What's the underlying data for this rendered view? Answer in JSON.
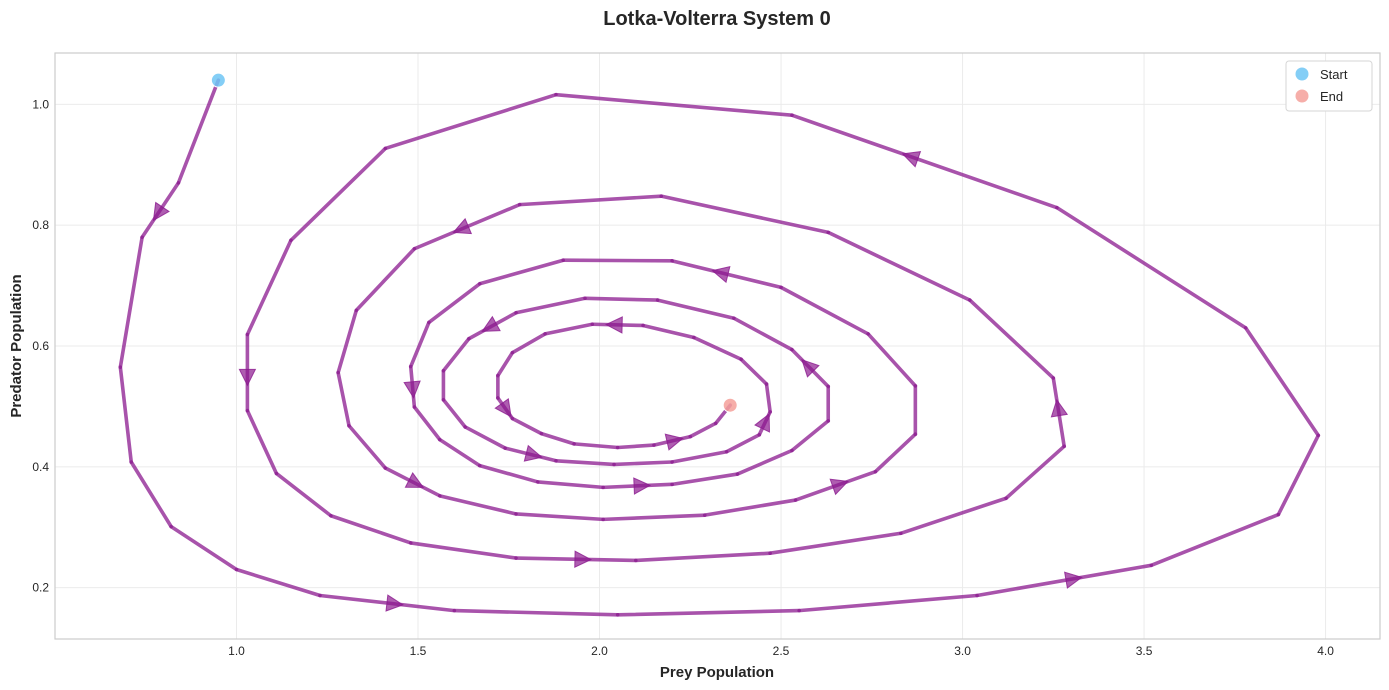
{
  "chart_data": {
    "type": "line",
    "title": "Lotka-Volterra System 0",
    "xlabel": "Prey Population",
    "ylabel": "Predator Population",
    "xlim": [
      0.5,
      4.15
    ],
    "ylim": [
      0.115,
      1.085
    ],
    "xticks": [
      "1.0",
      "1.5",
      "2.0",
      "2.5",
      "3.0",
      "3.5",
      "4.0"
    ],
    "yticks": [
      "0.2",
      "0.4",
      "0.6",
      "0.8",
      "1.0"
    ],
    "grid": true,
    "legend_position": "top-right",
    "series": [
      {
        "line_color": "#8B1A8F",
        "points": [
          [
            0.95,
            1.04
          ],
          [
            0.84,
            0.87
          ],
          [
            0.74,
            0.78
          ],
          [
            0.68,
            0.565
          ],
          [
            0.71,
            0.408
          ],
          [
            0.82,
            0.301
          ],
          [
            1.0,
            0.23
          ],
          [
            1.23,
            0.187
          ],
          [
            1.6,
            0.162
          ],
          [
            2.05,
            0.155
          ],
          [
            2.55,
            0.162
          ],
          [
            3.04,
            0.187
          ],
          [
            3.52,
            0.237
          ],
          [
            3.87,
            0.321
          ],
          [
            3.98,
            0.452
          ],
          [
            3.78,
            0.63
          ],
          [
            3.26,
            0.829
          ],
          [
            2.53,
            0.982
          ],
          [
            1.88,
            1.016
          ],
          [
            1.41,
            0.927
          ],
          [
            1.15,
            0.775
          ],
          [
            1.03,
            0.619
          ],
          [
            1.03,
            0.493
          ],
          [
            1.11,
            0.389
          ],
          [
            1.26,
            0.319
          ],
          [
            1.48,
            0.274
          ],
          [
            1.77,
            0.249
          ],
          [
            2.1,
            0.245
          ],
          [
            2.47,
            0.257
          ],
          [
            2.83,
            0.29
          ],
          [
            3.12,
            0.348
          ],
          [
            3.28,
            0.434
          ],
          [
            3.25,
            0.547
          ],
          [
            3.02,
            0.676
          ],
          [
            2.63,
            0.788
          ],
          [
            2.17,
            0.848
          ],
          [
            1.78,
            0.834
          ],
          [
            1.49,
            0.761
          ],
          [
            1.33,
            0.659
          ],
          [
            1.28,
            0.556
          ],
          [
            1.31,
            0.468
          ],
          [
            1.41,
            0.398
          ],
          [
            1.56,
            0.352
          ],
          [
            1.77,
            0.322
          ],
          [
            2.01,
            0.313
          ],
          [
            2.29,
            0.32
          ],
          [
            2.54,
            0.345
          ],
          [
            2.76,
            0.392
          ],
          [
            2.87,
            0.454
          ],
          [
            2.87,
            0.534
          ],
          [
            2.74,
            0.62
          ],
          [
            2.5,
            0.697
          ],
          [
            2.2,
            0.741
          ],
          [
            1.9,
            0.742
          ],
          [
            1.67,
            0.703
          ],
          [
            1.53,
            0.639
          ],
          [
            1.48,
            0.566
          ],
          [
            1.49,
            0.499
          ],
          [
            1.56,
            0.445
          ],
          [
            1.67,
            0.402
          ],
          [
            1.83,
            0.375
          ],
          [
            2.01,
            0.366
          ],
          [
            2.2,
            0.371
          ],
          [
            2.38,
            0.388
          ],
          [
            2.53,
            0.427
          ],
          [
            2.63,
            0.476
          ],
          [
            2.63,
            0.533
          ],
          [
            2.53,
            0.594
          ],
          [
            2.37,
            0.646
          ],
          [
            2.16,
            0.676
          ],
          [
            1.96,
            0.679
          ],
          [
            1.77,
            0.655
          ],
          [
            1.64,
            0.612
          ],
          [
            1.57,
            0.559
          ],
          [
            1.57,
            0.511
          ],
          [
            1.63,
            0.466
          ],
          [
            1.74,
            0.431
          ],
          [
            1.88,
            0.41
          ],
          [
            2.04,
            0.404
          ],
          [
            2.2,
            0.408
          ],
          [
            2.35,
            0.425
          ],
          [
            2.44,
            0.453
          ],
          [
            2.47,
            0.491
          ],
          [
            2.46,
            0.537
          ],
          [
            2.39,
            0.578
          ],
          [
            2.26,
            0.614
          ],
          [
            2.12,
            0.634
          ],
          [
            1.98,
            0.636
          ],
          [
            1.85,
            0.62
          ],
          [
            1.76,
            0.589
          ],
          [
            1.72,
            0.551
          ],
          [
            1.72,
            0.514
          ],
          [
            1.76,
            0.48
          ],
          [
            1.84,
            0.455
          ],
          [
            1.93,
            0.438
          ],
          [
            2.05,
            0.432
          ],
          [
            2.15,
            0.436
          ],
          [
            2.25,
            0.45
          ],
          [
            2.32,
            0.472
          ],
          [
            2.36,
            0.502
          ]
        ],
        "arrow_indices": [
          1,
          7,
          11,
          16,
          21,
          26,
          31,
          36,
          41,
          46,
          51,
          56,
          61,
          66,
          71,
          76,
          81,
          86,
          91,
          96
        ]
      }
    ],
    "markers": [
      {
        "name": "Start",
        "x": 0.95,
        "y": 1.04,
        "color": "#6EC6F5"
      },
      {
        "name": "End",
        "x": 2.36,
        "y": 0.502,
        "color": "#F5A09A"
      }
    ],
    "legend": [
      {
        "label": "Start",
        "color": "#6EC6F5"
      },
      {
        "label": "End",
        "color": "#F5A09A"
      }
    ]
  }
}
